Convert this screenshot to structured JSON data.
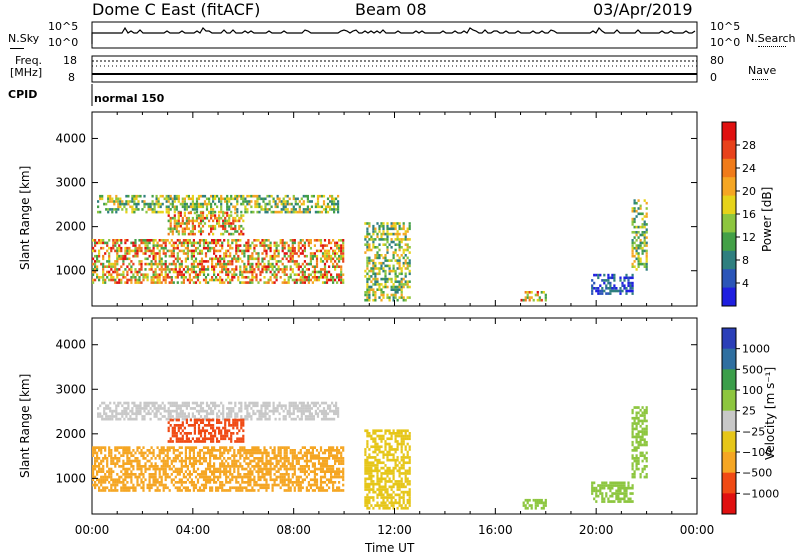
{
  "header": {
    "title": "Dome C East (fitACF)",
    "beam": "Beam 08",
    "date": "03/Apr/2019"
  },
  "panels": {
    "nsky": {
      "label": "N.Sky",
      "ytop": "10^5",
      "ybot": "10^0",
      "right_label": "N.Search",
      "right_ytop": "10^5",
      "right_ybot": "10^0"
    },
    "freq": {
      "label": "Freq.",
      "unit": "[MHz]",
      "ytop": "18",
      "ybot": "8",
      "right_label": "Nave",
      "right_ytop": "80",
      "right_ybot": "0"
    },
    "cpid": {
      "label": "CPID",
      "mode": "normal 150"
    }
  },
  "colors": {
    "power": [
      "#1f1fe0",
      "#2b55b8",
      "#2f7f7f",
      "#43a047",
      "#8dc63f",
      "#e6d31a",
      "#f5a623",
      "#f07b1a",
      "#e8421b",
      "#e01010"
    ],
    "velocity": [
      "#e01010",
      "#f04a14",
      "#f5a623",
      "#e6c619",
      "#c8c8c8",
      "#8dc63f",
      "#3b9e4a",
      "#2f6fa0",
      "#2b3fb8"
    ]
  },
  "chart_data": [
    {
      "type": "heatmap",
      "name": "power",
      "xlabel": "",
      "ylabel": "Slant Range [km]",
      "xlim": [
        "00:00",
        "24:00"
      ],
      "ylim": [
        200,
        4600
      ],
      "y_ticks": [
        "1000",
        "2000",
        "3000",
        "4000"
      ],
      "colorbar_label": "Power [dB]",
      "colorbar_ticks": [
        "4",
        "8",
        "12",
        "16",
        "20",
        "24",
        "28"
      ],
      "regions": [
        {
          "t0": 0.0,
          "t1": 10.0,
          "r0": 700,
          "r1": 1700,
          "level": "high"
        },
        {
          "t0": 0.2,
          "t1": 9.8,
          "r0": 2300,
          "r1": 2700,
          "level": "mid"
        },
        {
          "t0": 3.0,
          "t1": 6.0,
          "r0": 1800,
          "r1": 2300,
          "level": "high"
        },
        {
          "t0": 10.8,
          "t1": 12.6,
          "r0": 300,
          "r1": 2100,
          "level": "mid"
        },
        {
          "t0": 17.0,
          "t1": 18.0,
          "r0": 300,
          "r1": 500,
          "level": "high"
        },
        {
          "t0": 19.8,
          "t1": 21.4,
          "r0": 450,
          "r1": 900,
          "level": "low"
        },
        {
          "t0": 21.4,
          "t1": 22.0,
          "r0": 1000,
          "r1": 2600,
          "level": "mid"
        }
      ]
    },
    {
      "type": "heatmap",
      "name": "velocity",
      "xlabel": "Time UT",
      "ylabel": "Slant Range [km]",
      "x_ticks": [
        "00:00",
        "04:00",
        "08:00",
        "12:00",
        "16:00",
        "20:00",
        "00:00"
      ],
      "ylim": [
        200,
        4600
      ],
      "y_ticks": [
        "1000",
        "2000",
        "3000",
        "4000"
      ],
      "colorbar_label": "Velocity [m s⁻¹]",
      "colorbar_ticks": [
        "1000",
        "500",
        "100",
        "25",
        "−25",
        "−100",
        "−500",
        "−1000"
      ],
      "regions": [
        {
          "t0": 0.0,
          "t1": 10.0,
          "r0": 700,
          "r1": 1700,
          "vel": "-200"
        },
        {
          "t0": 0.2,
          "t1": 9.8,
          "r0": 2300,
          "r1": 2700,
          "vel": "0"
        },
        {
          "t0": 3.0,
          "t1": 6.0,
          "r0": 1800,
          "r1": 2300,
          "vel": "-300"
        },
        {
          "t0": 10.8,
          "t1": 12.6,
          "r0": 300,
          "r1": 2100,
          "vel": "-100"
        },
        {
          "t0": 17.0,
          "t1": 18.0,
          "r0": 300,
          "r1": 500,
          "vel": "100"
        },
        {
          "t0": 19.8,
          "t1": 21.4,
          "r0": 450,
          "r1": 900,
          "vel": "80"
        },
        {
          "t0": 21.4,
          "t1": 22.0,
          "r0": 1000,
          "r1": 2600,
          "vel": "60"
        }
      ]
    }
  ]
}
